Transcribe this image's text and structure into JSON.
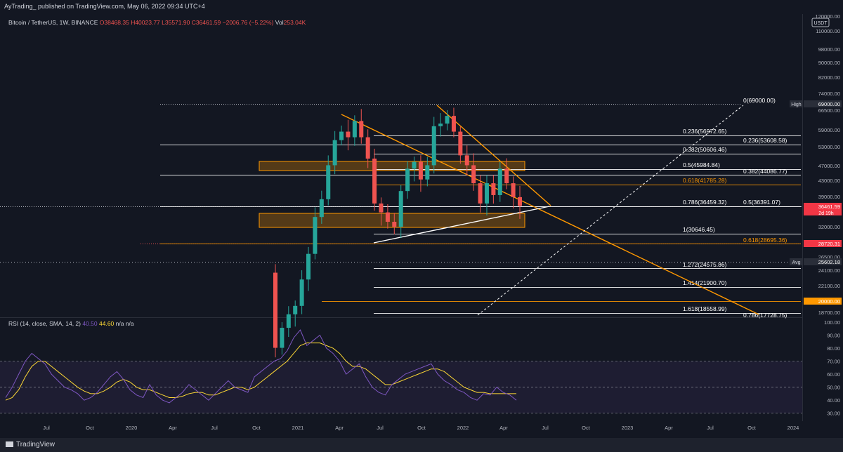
{
  "header": {
    "published_line": "AyTrading_ published on TradingView.com, May 06, 2022 09:34 UTC+4"
  },
  "symbol_line": {
    "name": "Bitcoin / TetherUS, 1W, BINANCE",
    "open": "O38468.35",
    "high": "H40023.77",
    "low": "L35571.90",
    "close": "C36461.59",
    "change": "−2006.76 (−5.22%)",
    "vol_label": "Vol",
    "vol_value": "253.04K"
  },
  "currency_badge": "USDT",
  "price_axis": {
    "ticks": [
      "120000.00",
      "110000.00",
      "98000.00",
      "90000.00",
      "82000.00",
      "74000.00",
      "66500.00",
      "59000.00",
      "53000.00",
      "47000.00",
      "43000.00",
      "39000.00",
      "32000.00",
      "26500.00",
      "24100.00",
      "22100.00",
      "18700.00"
    ],
    "tags": [
      {
        "label": "High",
        "value": "69000.00",
        "color": "#2a2e39"
      },
      {
        "label": "",
        "value": "36461.59",
        "sub": "2d 19h",
        "color": "#f23645"
      },
      {
        "label": "",
        "value": "28720.31",
        "color": "#f23645"
      },
      {
        "label": "Avg",
        "value": "25602.18",
        "color": "#2a2e39"
      },
      {
        "label": "",
        "value": "20000.00",
        "color": "#ff9800"
      }
    ]
  },
  "fib_labels": [
    {
      "text": "0(69000.00)",
      "color": "#ffffff"
    },
    {
      "text": "0.236(56972.65)",
      "color": "#ffffff"
    },
    {
      "text": "0.236(53608.58)",
      "color": "#ffffff"
    },
    {
      "text": "0.382(50606.46)",
      "color": "#ffffff"
    },
    {
      "text": "0.5(45984.84)",
      "color": "#ffffff"
    },
    {
      "text": "0.382(44086.77)",
      "color": "#ffffff"
    },
    {
      "text": "0.618(41785.28)",
      "color": "#ff9800"
    },
    {
      "text": "0.786(36459.32)",
      "color": "#ffffff"
    },
    {
      "text": "0.5(36391.07)",
      "color": "#ffffff"
    },
    {
      "text": "1(30646.45)",
      "color": "#ffffff"
    },
    {
      "text": "0.618(28695.36)",
      "color": "#ff9800"
    },
    {
      "text": "1.272(24575.86)",
      "color": "#ffffff"
    },
    {
      "text": "1.414(21900.70)",
      "color": "#ffffff"
    },
    {
      "text": "1.618(18558.99)",
      "color": "#ffffff"
    },
    {
      "text": "0.786(17728.75)",
      "color": "#ffffff"
    }
  ],
  "rsi": {
    "title": "RSI (14, close, SMA, 14, 2)",
    "val1": "40.50",
    "val2": "44.60",
    "val3": "n/a",
    "val4": "n/a",
    "ticks": [
      "100.00",
      "90.00",
      "80.00",
      "70.00",
      "60.00",
      "50.00",
      "40.00",
      "30.00"
    ],
    "levels": [
      70,
      50,
      30
    ],
    "ylim": [
      25,
      100
    ]
  },
  "time_axis": [
    "Jul",
    "Oct",
    "2020",
    "Apr",
    "Jul",
    "Oct",
    "2021",
    "Apr",
    "Jul",
    "Oct",
    "2022",
    "Apr",
    "Jul",
    "Oct",
    "2023",
    "Apr",
    "Jul",
    "Oct",
    "2024"
  ],
  "footer_brand": "TradingView",
  "colors": {
    "bg": "#131722",
    "up": "#26a69a",
    "down": "#ef5350",
    "orange": "#ff9800",
    "rsi": "#7e57c2",
    "rsi_ma": "#fdd835"
  },
  "chart_data": {
    "type": "candlestick",
    "title": "Bitcoin / TetherUS, 1W, BINANCE",
    "price_scale": "log",
    "ylim": [
      17500,
      120000
    ],
    "weekly_close_path": [
      [
        2021,
        1,
        27000
      ],
      [
        2021,
        1,
        34000
      ],
      [
        2021,
        2,
        38000
      ],
      [
        2021,
        2,
        47000
      ],
      [
        2021,
        2,
        55000
      ],
      [
        2021,
        3,
        58000
      ],
      [
        2021,
        3,
        56000
      ],
      [
        2021,
        4,
        62000
      ],
      [
        2021,
        4,
        56000
      ],
      [
        2021,
        5,
        49000
      ],
      [
        2021,
        5,
        37000
      ],
      [
        2021,
        6,
        35000
      ],
      [
        2021,
        6,
        33000
      ],
      [
        2021,
        7,
        32000
      ],
      [
        2021,
        7,
        40000
      ],
      [
        2021,
        8,
        46000
      ],
      [
        2021,
        8,
        48000
      ],
      [
        2021,
        9,
        43000
      ],
      [
        2021,
        9,
        47000
      ],
      [
        2021,
        10,
        60000
      ],
      [
        2021,
        10,
        61000
      ],
      [
        2021,
        11,
        64000
      ],
      [
        2021,
        11,
        58000
      ],
      [
        2021,
        12,
        50000
      ],
      [
        2021,
        12,
        47000
      ],
      [
        2022,
        1,
        42000
      ],
      [
        2022,
        1,
        37000
      ],
      [
        2022,
        2,
        42000
      ],
      [
        2022,
        3,
        39000
      ],
      [
        2022,
        3,
        46000
      ],
      [
        2022,
        4,
        42000
      ],
      [
        2022,
        4,
        38500
      ],
      [
        2022,
        5,
        36461
      ]
    ],
    "levels": {
      "high": 69000,
      "last": 36461.59,
      "support_marked": 28720.31,
      "avg": 25602.18,
      "target": 20000
    }
  }
}
